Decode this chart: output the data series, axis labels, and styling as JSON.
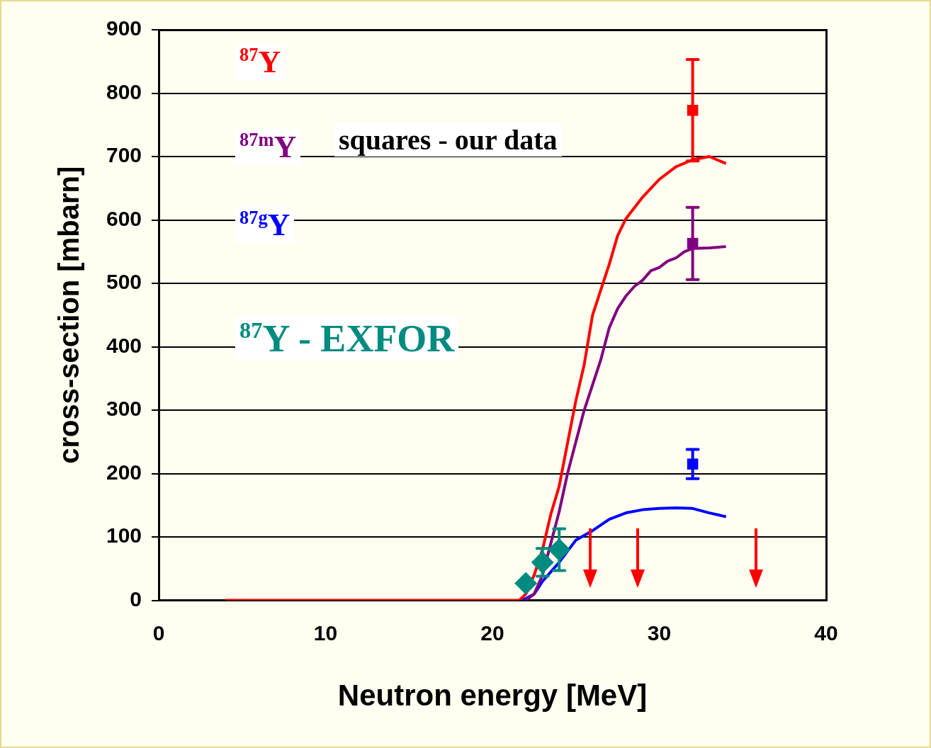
{
  "chart_data": {
    "type": "line",
    "xlabel": "Neutron energy [MeV]",
    "ylabel": "cross-section [mbarn]",
    "xlim": [
      0,
      40
    ],
    "xticks": [
      0,
      10,
      20,
      30,
      40
    ],
    "ylim": [
      0,
      900
    ],
    "yticks": [
      0,
      100,
      200,
      300,
      400,
      500,
      600,
      700,
      800,
      900
    ],
    "grid": "y",
    "legend": "top left",
    "line_style": "solid",
    "marker": "none",
    "annotations": [
      "squares - our data"
    ],
    "series": [
      {
        "name": "$^{87}$Y",
        "type": "line",
        "color": "#ff0000",
        "x": [
          4,
          10,
          15,
          20,
          21.6,
          22,
          22.5,
          23,
          23.5,
          24,
          24.5,
          25,
          25.5,
          26,
          26.5,
          27,
          27.5,
          28,
          29,
          30,
          31,
          32,
          33,
          34
        ],
        "values": [
          0,
          0,
          0,
          0,
          0,
          10,
          40,
          80,
          136,
          180,
          248,
          315,
          372,
          450,
          490,
          530,
          575,
          602,
          636,
          664,
          684,
          695,
          700,
          689
        ]
      },
      {
        "name": "$^{87m}$Y",
        "type": "line",
        "color": "#800080",
        "x": [
          22,
          22.5,
          23,
          23.5,
          24,
          24.5,
          25,
          25.5,
          26,
          26.5,
          27,
          27.5,
          28,
          28.5,
          29,
          29.5,
          30,
          30.5,
          31,
          31.5,
          32,
          33,
          34
        ],
        "values": [
          0,
          10,
          40,
          90,
          140,
          200,
          250,
          300,
          340,
          380,
          430,
          460,
          480,
          495,
          505,
          520,
          525,
          535,
          540,
          550,
          555,
          556,
          558
        ]
      },
      {
        "name": "$^{87g}$Y",
        "type": "line",
        "color": "#0000ff",
        "x": [
          21.8,
          22.5,
          23,
          24,
          25,
          26,
          27,
          28,
          29,
          30,
          31,
          32,
          33,
          34
        ],
        "values": [
          0,
          10,
          30,
          60,
          95,
          110,
          128,
          138,
          143,
          145,
          146,
          145,
          138,
          132
        ]
      },
      {
        "type": "scatter",
        "marker": "square",
        "color": "#ff0000",
        "x": [
          32
        ],
        "values": [
          773
        ],
        "errors": [
          80
        ]
      },
      {
        "type": "scatter",
        "marker": "square",
        "color": "#800080",
        "x": [
          32
        ],
        "values": [
          563
        ],
        "errors": [
          57
        ]
      },
      {
        "type": "scatter",
        "marker": "square",
        "color": "#0000ff",
        "x": [
          32
        ],
        "values": [
          215
        ],
        "errors": [
          23
        ]
      },
      {
        "name": "$^{87}$Y - EXFOR",
        "type": "scatter",
        "marker": "diamond",
        "color": "#008b80",
        "x": [
          22,
          23,
          24
        ],
        "values": [
          27,
          60,
          80
        ],
        "errors": [
          null,
          22,
          33
        ]
      }
    ]
  }
}
